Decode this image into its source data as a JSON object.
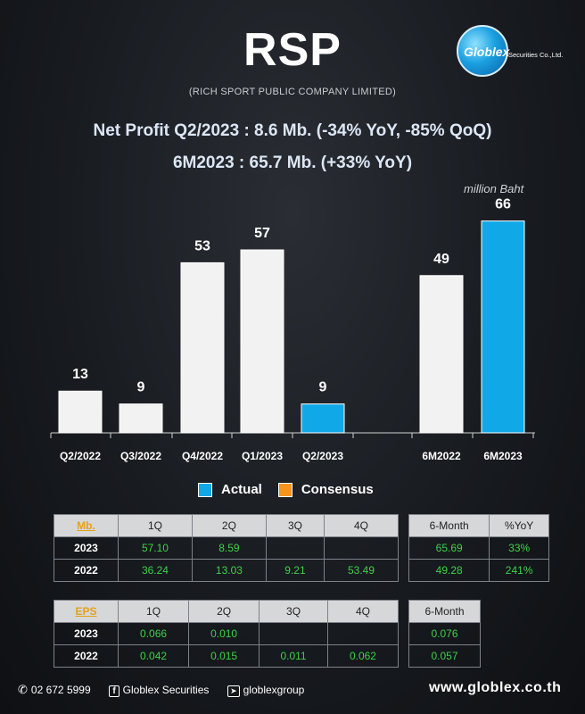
{
  "header": {
    "ticker": "RSP",
    "company_name": "(RICH SPORT PUBLIC COMPANY LIMITED)",
    "logo_text": "Globlex",
    "logo_subtext": "Securities Co.,Ltd."
  },
  "headline": {
    "line1": "Net Profit  Q2/2023 : 8.6 Mb. (-34% YoY, -85% QoQ)",
    "line2": "6M2023 : 65.7 Mb. (+33% YoY)"
  },
  "unit_label": "million Baht",
  "chart_data": {
    "type": "bar",
    "categories": [
      "Q2/2022",
      "Q3/2022",
      "Q4/2022",
      "Q1/2023",
      "Q2/2023",
      "6M2022",
      "6M2023"
    ],
    "values": [
      13,
      9,
      53,
      57,
      9,
      49,
      66
    ],
    "data_labels": [
      "13",
      "9",
      "53",
      "57",
      "9",
      "49",
      "66"
    ],
    "series_kind": [
      "Actual",
      "Actual",
      "Actual",
      "Actual",
      "Actual",
      "Actual",
      "Actual"
    ],
    "highlight": [
      false,
      false,
      false,
      false,
      true,
      false,
      true
    ],
    "ylim": [
      0,
      70
    ],
    "colors": {
      "default_bar": "#f2f2f2",
      "highlight_bar": "#11a8e8",
      "consensus": "#f7941d"
    },
    "legend": [
      "Actual",
      "Consensus"
    ],
    "legend_position": "bottom",
    "grid": false
  },
  "legend": {
    "actual": "Actual",
    "consensus": "Consensus"
  },
  "table_mb": {
    "corner": "Mb.",
    "headers": [
      "1Q",
      "2Q",
      "3Q",
      "4Q"
    ],
    "rows": [
      {
        "year": "2023",
        "values": [
          "57.10",
          "8.59",
          "",
          ""
        ]
      },
      {
        "year": "2022",
        "values": [
          "36.24",
          "13.03",
          "9.21",
          "53.49"
        ]
      }
    ]
  },
  "table_mb_6m": {
    "headers": [
      "6-Month",
      "%YoY"
    ],
    "rows": [
      {
        "values": [
          "65.69",
          "33%"
        ]
      },
      {
        "values": [
          "49.28",
          "241%"
        ]
      }
    ]
  },
  "table_eps": {
    "corner": "EPS",
    "headers": [
      "1Q",
      "2Q",
      "3Q",
      "4Q"
    ],
    "rows": [
      {
        "year": "2023",
        "values": [
          "0.066",
          "0.010",
          "",
          ""
        ]
      },
      {
        "year": "2022",
        "values": [
          "0.042",
          "0.015",
          "0.011",
          "0.062"
        ]
      }
    ]
  },
  "table_eps_6m": {
    "headers": [
      "6-Month"
    ],
    "rows": [
      {
        "values": [
          "0.076"
        ]
      },
      {
        "values": [
          "0.057"
        ]
      }
    ]
  },
  "footer": {
    "phone": "02 672 5999",
    "facebook": "Globlex Securities",
    "telegram": "globlexgroup",
    "website": "www.globlex.co.th"
  }
}
